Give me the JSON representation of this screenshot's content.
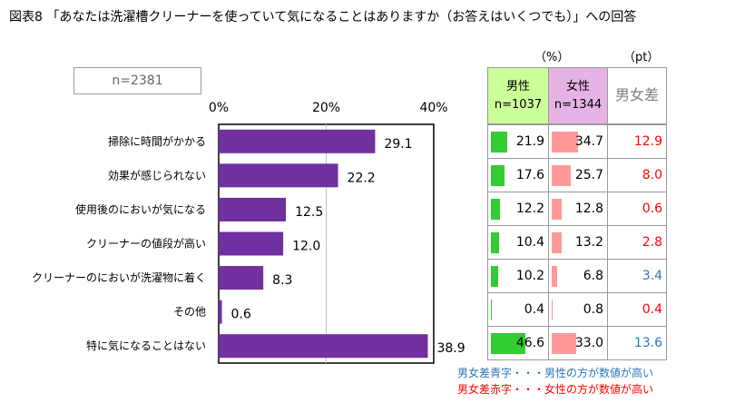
{
  "title": "図表8 「あなたは洗濯槽クリーナーを使っていて気になることはありますか（お答えはいくつでも）」への回答",
  "sample_label": "n=2381",
  "units": {
    "percent": "（%）",
    "points": "（pt）"
  },
  "table_headers": {
    "male": "男性",
    "male_n": "n=1037",
    "female": "女性",
    "female_n": "n=1344",
    "diff": "男女差"
  },
  "colors": {
    "bar": "#7030a0",
    "male_bar": "#33cc33",
    "female_bar": "#ff9999",
    "male_header_bg": "#ccff99",
    "female_header_bg": "#e6b3e6",
    "diff_blue": "#2e75b6",
    "diff_red": "#ff0000"
  },
  "legend_notes": {
    "blue": "男女差青字・・・男性の方が数値が高い",
    "red": "男女差赤字・・・女性の方が数値が高い"
  },
  "chart_data": {
    "type": "bar",
    "orientation": "horizontal",
    "title": "",
    "xlabel": "",
    "ylabel": "",
    "xlim": [
      0,
      40
    ],
    "ticks": [
      {
        "value": 0,
        "label": "0%"
      },
      {
        "value": 20,
        "label": "20%"
      },
      {
        "value": 40,
        "label": "40%"
      }
    ],
    "grid": "vertical at 20%",
    "categories": [
      "掃除に時間がかかる",
      "効果が感じられない",
      "使用後のにおいが気になる",
      "クリーナーの値段が高い",
      "クリーナーのにおいが洗濯物に着く",
      "その他",
      "特に気になることはない"
    ],
    "values": [
      29.1,
      22.2,
      12.5,
      12.0,
      8.3,
      0.6,
      38.9
    ],
    "value_labels": [
      "29.1",
      "22.2",
      "12.5",
      "12.0",
      "8.3",
      "0.6",
      "38.9"
    ],
    "male": [
      21.9,
      17.6,
      12.2,
      10.4,
      10.2,
      0.4,
      46.6
    ],
    "male_labels": [
      "21.9",
      "17.6",
      "12.2",
      "10.4",
      "10.2",
      "0.4",
      "46.6"
    ],
    "female": [
      34.7,
      25.7,
      12.8,
      13.2,
      6.8,
      0.8,
      33.0
    ],
    "female_labels": [
      "34.7",
      "25.7",
      "12.8",
      "13.2",
      "6.8",
      "0.8",
      "33.0"
    ],
    "diff_labels": [
      "12.9",
      "8.0",
      "0.6",
      "2.8",
      "3.4",
      "0.4",
      "13.6"
    ],
    "diff_higher": [
      "female",
      "female",
      "female",
      "female",
      "male",
      "female",
      "male"
    ]
  }
}
